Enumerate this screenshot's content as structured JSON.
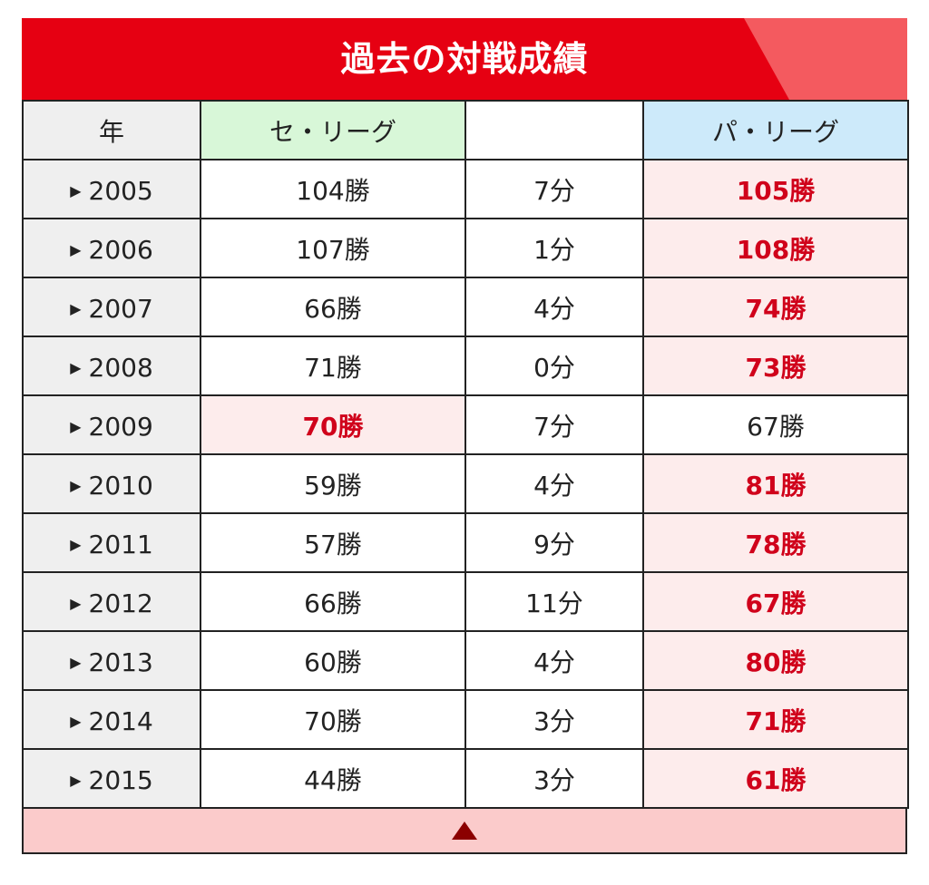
{
  "title": "過去の対戦成績",
  "columns": {
    "year": "年",
    "central": "セ・リーグ",
    "draw": "",
    "pacific": "パ・リーグ"
  },
  "rows": [
    {
      "year": "2005",
      "central": "104勝",
      "draw": "7分",
      "pacific": "105勝",
      "winner": "pacific"
    },
    {
      "year": "2006",
      "central": "107勝",
      "draw": "1分",
      "pacific": "108勝",
      "winner": "pacific"
    },
    {
      "year": "2007",
      "central": "66勝",
      "draw": "4分",
      "pacific": "74勝",
      "winner": "pacific"
    },
    {
      "year": "2008",
      "central": "71勝",
      "draw": "0分",
      "pacific": "73勝",
      "winner": "pacific"
    },
    {
      "year": "2009",
      "central": "70勝",
      "draw": "7分",
      "pacific": "67勝",
      "winner": "central"
    },
    {
      "year": "2010",
      "central": "59勝",
      "draw": "4分",
      "pacific": "81勝",
      "winner": "pacific"
    },
    {
      "year": "2011",
      "central": "57勝",
      "draw": "9分",
      "pacific": "78勝",
      "winner": "pacific"
    },
    {
      "year": "2012",
      "central": "66勝",
      "draw": "11分",
      "pacific": "67勝",
      "winner": "pacific"
    },
    {
      "year": "2013",
      "central": "60勝",
      "draw": "4分",
      "pacific": "80勝",
      "winner": "pacific"
    },
    {
      "year": "2014",
      "central": "70勝",
      "draw": "3分",
      "pacific": "71勝",
      "winner": "pacific"
    },
    {
      "year": "2015",
      "central": "44勝",
      "draw": "3分",
      "pacific": "61勝",
      "winner": "pacific"
    }
  ],
  "icons": {
    "row_marker": "triangle-right-icon",
    "collapse": "triangle-up-icon"
  },
  "colors": {
    "header_red": "#e60012",
    "win_text": "#d0021b",
    "win_bg": "#fdecec",
    "central_header_bg": "#d8f7d8",
    "pacific_header_bg": "#cdeafa"
  }
}
